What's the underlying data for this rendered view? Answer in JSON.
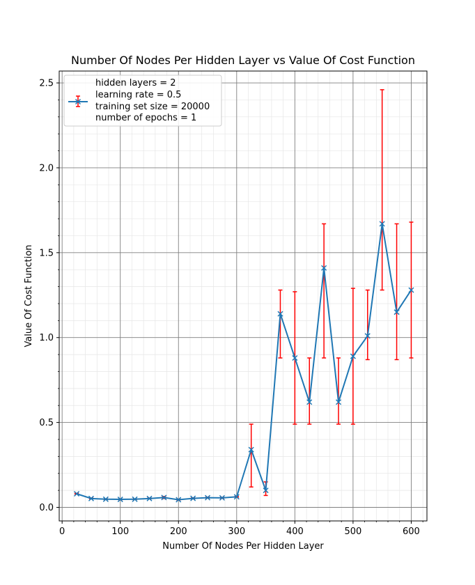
{
  "chart_data": {
    "type": "line",
    "title": "Number Of Nodes Per Hidden Layer vs Value Of Cost Function",
    "xlabel": "Number Of Nodes Per Hidden Layer",
    "ylabel": "Value Of Cost Function",
    "xlim": [
      -5,
      627
    ],
    "ylim": [
      -0.08,
      2.57
    ],
    "xticks": [
      0,
      100,
      200,
      300,
      400,
      500,
      600
    ],
    "xtick_labels": [
      "0",
      "100",
      "200",
      "300",
      "400",
      "500",
      "600"
    ],
    "yticks": [
      0.0,
      0.5,
      1.0,
      1.5,
      2.0,
      2.5
    ],
    "ytick_labels": [
      "0.0",
      "0.5",
      "1.0",
      "1.5",
      "2.0",
      "2.5"
    ],
    "grid": true,
    "legend_position": "top-left",
    "legend": [
      "hidden layers = 2",
      "learning rate = 0.5",
      "training set size = 20000",
      "number of epochs = 1"
    ],
    "line_color": "#1f77b4",
    "error_color": "#ff0000",
    "x": [
      25,
      50,
      75,
      100,
      125,
      150,
      175,
      200,
      225,
      250,
      275,
      300,
      325,
      350,
      375,
      400,
      425,
      450,
      475,
      500,
      525,
      550,
      575,
      600
    ],
    "series": [
      {
        "values": [
          0.08,
          0.052,
          0.048,
          0.047,
          0.048,
          0.052,
          0.058,
          0.045,
          0.053,
          0.057,
          0.056,
          0.062,
          0.34,
          0.1,
          1.14,
          0.88,
          0.62,
          1.41,
          0.62,
          0.89,
          1.01,
          1.67,
          1.15,
          1.28
        ],
        "err_low": [
          0.078,
          0.05,
          0.046,
          0.045,
          0.046,
          0.05,
          0.052,
          0.043,
          0.05,
          0.054,
          0.053,
          0.059,
          0.12,
          0.07,
          0.88,
          0.49,
          0.49,
          0.88,
          0.49,
          0.49,
          0.87,
          1.28,
          0.87,
          0.88
        ],
        "err_high": [
          0.083,
          0.055,
          0.05,
          0.049,
          0.05,
          0.055,
          0.064,
          0.048,
          0.056,
          0.06,
          0.059,
          0.065,
          0.49,
          0.15,
          1.28,
          1.27,
          0.88,
          1.67,
          0.88,
          1.29,
          1.28,
          2.46,
          1.67,
          1.68
        ]
      }
    ]
  }
}
